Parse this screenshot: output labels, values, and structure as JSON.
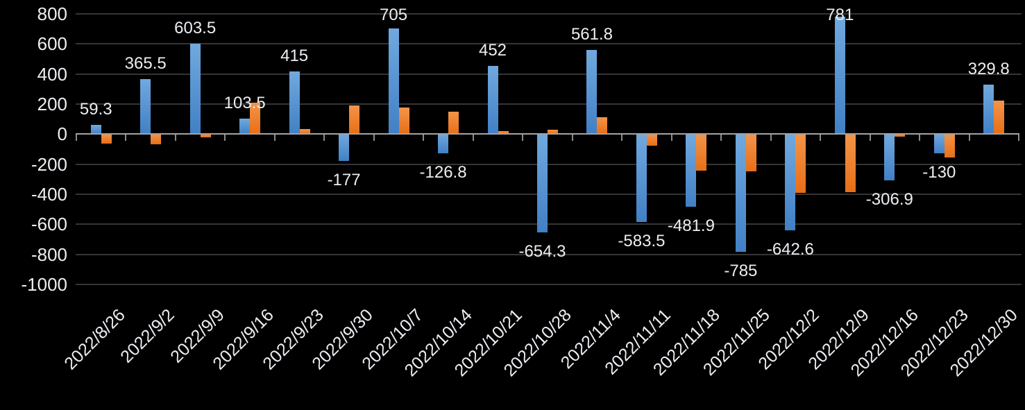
{
  "chart_data": {
    "type": "bar",
    "title": "",
    "subtitle": "",
    "legend": "none",
    "grid": true,
    "background": "#000000",
    "text_color": "#eceef2",
    "gridline_color": "#353535",
    "axis_color": "#a3a3a3",
    "tick_color": "#8c8c8c",
    "ylim": [
      -1000,
      800
    ],
    "ytick_interval": 200,
    "yticks": [
      "800",
      "600",
      "400",
      "200",
      "0",
      "-200",
      "-400",
      "-600",
      "-800",
      "-1000"
    ],
    "categories": [
      "2022/8/26",
      "2022/9/2",
      "2022/9/9",
      "2022/9/16",
      "2022/9/23",
      "2022/9/30",
      "2022/10/7",
      "2022/10/14",
      "2022/10/21",
      "2022/10/28",
      "2022/11/4",
      "2022/11/11",
      "2022/11/18",
      "2022/11/25",
      "2022/12/2",
      "2022/12/9",
      "2022/12/16",
      "2022/12/23",
      "2022/12/30"
    ],
    "series": [
      {
        "name": "blue",
        "color_top": "#71a9de",
        "color_bottom": "#4180c6",
        "values": [
          59.3,
          365.5,
          603.5,
          103.5,
          415,
          -177,
          705,
          -126.8,
          452,
          -654.3,
          561.8,
          -583.5,
          -481.9,
          -785,
          -642.6,
          781,
          -306.9,
          -130,
          329.8
        ],
        "data_labels": [
          "59.3",
          "365.5",
          "603.5",
          "103.5",
          "415",
          "-177",
          "705",
          "-126.8",
          "452",
          "-654.3",
          "561.8",
          "-583.5",
          "-481.9",
          "-785",
          "-642.6",
          "781",
          "-306.9",
          "-130",
          "329.8"
        ]
      },
      {
        "name": "orange",
        "color_top": "#f4944a",
        "color_bottom": "#e76f17",
        "values": [
          -65,
          -70,
          -20,
          210,
          35,
          190,
          175,
          150,
          20,
          30,
          110,
          -75,
          -245,
          -250,
          -390,
          -385,
          -15,
          -155,
          225
        ],
        "data_labels": []
      }
    ]
  }
}
